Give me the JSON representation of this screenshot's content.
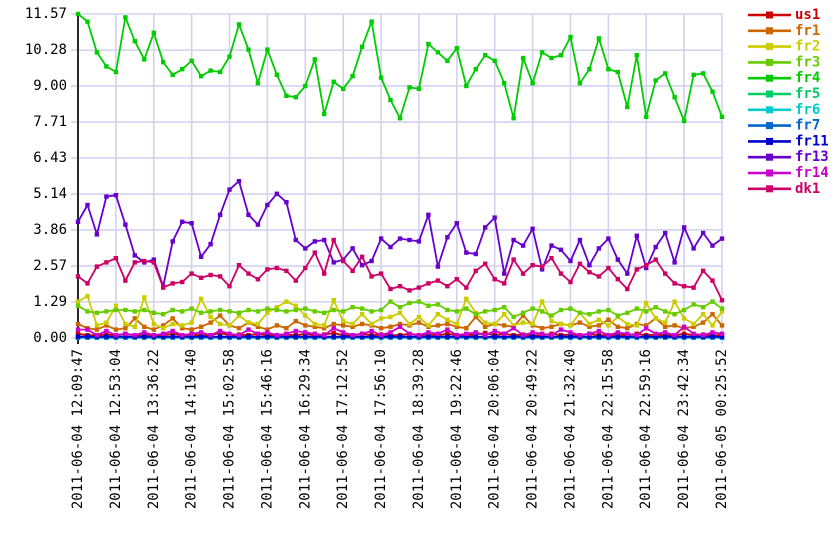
{
  "chart_data": {
    "type": "line",
    "title": "",
    "xlabel": "",
    "ylabel": "",
    "grid": true,
    "legend_position": "top-right-outside",
    "ylim": [
      0,
      11.57
    ],
    "yticks": {
      "values": [
        0.0,
        1.29,
        2.57,
        3.86,
        5.14,
        6.43,
        7.71,
        9.0,
        10.28,
        11.57
      ],
      "labels": [
        "0.00",
        "1.29",
        "2.57",
        "3.86",
        "5.14",
        "6.43",
        "7.71",
        "9.00",
        "10.28",
        "11.57"
      ]
    },
    "xticklabels": [
      "2011-06-04 12:09:47",
      "2011-06-04 12:53:04",
      "2011-06-04 13:36:22",
      "2011-06-04 14:19:40",
      "2011-06-04 15:02:58",
      "2011-06-04 15:46:16",
      "2011-06-04 16:29:34",
      "2011-06-04 17:12:52",
      "2011-06-04 17:56:10",
      "2011-06-04 18:39:28",
      "2011-06-04 19:22:46",
      "2011-06-04 20:06:04",
      "2011-06-04 20:49:22",
      "2011-06-04 21:32:40",
      "2011-06-04 22:15:58",
      "2011-06-04 22:59:16",
      "2011-06-04 23:42:34",
      "2011-06-05 00:25:52"
    ],
    "points_per_tick": 4,
    "n_points": 69,
    "colors": {
      "background": "#ffffff",
      "grid": "#d2d2f0",
      "axis": "#2a2a2a",
      "text": "#000000"
    },
    "series": [
      {
        "name": "us1",
        "color": "#cc0000",
        "values": [
          0.15,
          0.1,
          0.1,
          0.12,
          0.1,
          0.15,
          0.1,
          0.12,
          0.1,
          0.1,
          0.15,
          0.1,
          0.12,
          0.1,
          0.1,
          0.18,
          0.1,
          0.12,
          0.1,
          0.15,
          0.1,
          0.1,
          0.12,
          0.1,
          0.15,
          0.1,
          0.12,
          0.18,
          0.1,
          0.1,
          0.15,
          0.1,
          0.12,
          0.1,
          0.1,
          0.15,
          0.1,
          0.12,
          0.1,
          0.15,
          0.1,
          0.1,
          0.12,
          0.18,
          0.1,
          0.15,
          0.1,
          0.12,
          0.1,
          0.1,
          0.15,
          0.1,
          0.12,
          0.1,
          0.15,
          0.1,
          0.1,
          0.12,
          0.1,
          0.15,
          0.1,
          0.12,
          0.1,
          0.1,
          0.15,
          0.1,
          0.12,
          0.1,
          0.1
        ]
      },
      {
        "name": "fr1",
        "color": "#cc6600",
        "values": [
          0.5,
          0.35,
          0.3,
          0.45,
          0.3,
          0.35,
          0.7,
          0.4,
          0.3,
          0.45,
          0.7,
          0.35,
          0.3,
          0.4,
          0.55,
          0.8,
          0.45,
          0.35,
          0.55,
          0.4,
          0.3,
          0.45,
          0.35,
          0.6,
          0.45,
          0.4,
          0.35,
          0.5,
          0.45,
          0.4,
          0.5,
          0.45,
          0.35,
          0.4,
          0.5,
          0.45,
          0.55,
          0.4,
          0.45,
          0.5,
          0.4,
          0.35,
          0.75,
          0.4,
          0.5,
          0.45,
          0.4,
          0.8,
          0.45,
          0.35,
          0.4,
          0.5,
          0.45,
          0.55,
          0.4,
          0.45,
          0.65,
          0.4,
          0.35,
          0.5,
          0.45,
          0.7,
          0.4,
          0.45,
          0.35,
          0.4,
          0.55,
          0.85,
          0.45
        ]
      },
      {
        "name": "fr2",
        "color": "#cccc00",
        "values": [
          1.3,
          1.5,
          0.45,
          0.55,
          1.15,
          0.5,
          0.4,
          1.45,
          0.5,
          0.35,
          0.5,
          0.45,
          0.55,
          1.4,
          0.75,
          0.5,
          0.45,
          0.8,
          0.55,
          0.5,
          0.9,
          1.1,
          1.3,
          1.15,
          0.8,
          0.5,
          0.45,
          1.35,
          0.6,
          0.5,
          0.85,
          0.5,
          0.7,
          0.75,
          0.9,
          0.5,
          0.75,
          0.45,
          0.85,
          0.65,
          0.5,
          1.4,
          0.9,
          0.55,
          0.5,
          0.85,
          0.45,
          0.55,
          0.5,
          1.3,
          0.6,
          0.5,
          0.45,
          0.9,
          0.5,
          0.65,
          0.45,
          0.75,
          0.5,
          0.45,
          1.25,
          0.7,
          0.55,
          1.3,
          0.7,
          0.5,
          0.85,
          0.45,
          0.95
        ]
      },
      {
        "name": "fr3",
        "color": "#66cc00",
        "values": [
          1.15,
          0.95,
          0.9,
          0.95,
          1.0,
          1.0,
          0.95,
          1.0,
          0.9,
          0.85,
          1.0,
          0.95,
          1.05,
          0.9,
          0.95,
          1.0,
          0.95,
          0.9,
          1.0,
          0.95,
          1.05,
          1.0,
          0.95,
          1.0,
          1.05,
          0.95,
          0.9,
          1.0,
          0.95,
          1.1,
          1.05,
          0.95,
          1.0,
          1.3,
          1.1,
          1.25,
          1.3,
          1.15,
          1.2,
          1.0,
          0.95,
          1.05,
          0.85,
          0.95,
          1.0,
          1.1,
          0.75,
          0.9,
          1.05,
          0.95,
          0.8,
          1.0,
          1.05,
          0.9,
          0.85,
          0.95,
          1.0,
          0.8,
          0.9,
          1.05,
          0.95,
          1.1,
          0.95,
          0.85,
          1.0,
          1.2,
          1.1,
          1.3,
          1.05
        ]
      },
      {
        "name": "fr4",
        "color": "#00cc00",
        "values": [
          11.57,
          11.3,
          10.2,
          9.7,
          9.5,
          11.45,
          10.6,
          9.95,
          10.9,
          9.85,
          9.4,
          9.6,
          9.9,
          9.35,
          9.55,
          9.5,
          10.05,
          11.2,
          10.3,
          9.1,
          10.3,
          9.4,
          8.65,
          8.6,
          9.0,
          9.95,
          8.0,
          9.15,
          8.9,
          9.35,
          10.4,
          11.3,
          9.3,
          8.5,
          7.85,
          8.95,
          8.9,
          10.5,
          10.2,
          9.9,
          10.35,
          9.0,
          9.6,
          10.1,
          9.9,
          9.1,
          7.85,
          10.0,
          9.1,
          10.2,
          10.0,
          10.1,
          10.75,
          9.1,
          9.6,
          10.7,
          9.6,
          9.5,
          8.25,
          10.1,
          7.9,
          9.2,
          9.45,
          8.6,
          7.75,
          9.4,
          9.45,
          8.8,
          7.9
        ]
      },
      {
        "name": "fr5",
        "color": "#00cc66",
        "values": [
          0.01,
          0.01,
          0.01,
          0.01,
          0.01,
          0.01,
          0.01,
          0.01,
          0.01,
          0.01,
          0.01,
          0.01,
          0.01,
          0.01,
          0.01,
          0.01,
          0.01,
          0.01,
          0.01,
          0.01,
          0.01,
          0.01,
          0.01,
          0.01,
          0.01,
          0.01,
          0.01,
          0.01,
          0.01,
          0.01,
          0.01,
          0.01,
          0.01,
          0.01,
          0.01,
          0.01,
          0.01,
          0.01,
          0.01,
          0.01,
          0.01,
          0.01,
          0.01,
          0.01,
          0.01,
          0.01,
          0.01,
          0.01,
          0.01,
          0.01,
          0.01,
          0.01,
          0.01,
          0.01,
          0.01,
          0.01,
          0.01,
          0.01,
          0.01,
          0.01,
          0.01,
          0.01,
          0.01,
          0.01,
          0.01,
          0.01,
          0.01,
          0.01,
          0.01
        ]
      },
      {
        "name": "fr6",
        "color": "#00cccc",
        "values": [
          0.01,
          0.01,
          0.01,
          0.01,
          0.01,
          0.01,
          0.01,
          0.01,
          0.01,
          0.01,
          0.01,
          0.01,
          0.01,
          0.01,
          0.01,
          0.01,
          0.01,
          0.01,
          0.01,
          0.01,
          0.01,
          0.01,
          0.01,
          0.01,
          0.01,
          0.01,
          0.01,
          0.01,
          0.01,
          0.01,
          0.01,
          0.01,
          0.01,
          0.01,
          0.01,
          0.01,
          0.01,
          0.01,
          0.01,
          0.01,
          0.01,
          0.01,
          0.01,
          0.01,
          0.01,
          0.01,
          0.01,
          0.01,
          0.01,
          0.01,
          0.01,
          0.01,
          0.01,
          0.01,
          0.01,
          0.01,
          0.01,
          0.01,
          0.01,
          0.01,
          0.01,
          0.01,
          0.01,
          0.01,
          0.01,
          0.01,
          0.01,
          0.01,
          0.01
        ]
      },
      {
        "name": "fr7",
        "color": "#0066cc",
        "values": [
          0.02,
          0.02,
          0.02,
          0.02,
          0.02,
          0.02,
          0.02,
          0.02,
          0.02,
          0.02,
          0.02,
          0.02,
          0.02,
          0.02,
          0.02,
          0.02,
          0.02,
          0.02,
          0.02,
          0.02,
          0.02,
          0.02,
          0.02,
          0.02,
          0.02,
          0.02,
          0.02,
          0.02,
          0.02,
          0.02,
          0.02,
          0.02,
          0.02,
          0.02,
          0.02,
          0.02,
          0.02,
          0.02,
          0.02,
          0.02,
          0.02,
          0.02,
          0.02,
          0.02,
          0.02,
          0.02,
          0.02,
          0.02,
          0.02,
          0.02,
          0.02,
          0.02,
          0.02,
          0.02,
          0.02,
          0.02,
          0.02,
          0.02,
          0.02,
          0.02,
          0.02,
          0.02,
          0.02,
          0.02,
          0.02,
          0.02,
          0.02,
          0.02,
          0.02
        ]
      },
      {
        "name": "fr11",
        "color": "#0000cc",
        "values": [
          0.05,
          0.05,
          0.05,
          0.05,
          0.05,
          0.05,
          0.05,
          0.05,
          0.05,
          0.05,
          0.05,
          0.05,
          0.05,
          0.05,
          0.05,
          0.05,
          0.05,
          0.05,
          0.05,
          0.05,
          0.05,
          0.05,
          0.05,
          0.05,
          0.05,
          0.05,
          0.05,
          0.05,
          0.05,
          0.05,
          0.05,
          0.05,
          0.05,
          0.05,
          0.05,
          0.05,
          0.05,
          0.05,
          0.05,
          0.05,
          0.05,
          0.05,
          0.05,
          0.05,
          0.05,
          0.05,
          0.05,
          0.05,
          0.05,
          0.05,
          0.05,
          0.05,
          0.05,
          0.05,
          0.05,
          0.05,
          0.05,
          0.05,
          0.05,
          0.05,
          0.05,
          0.05,
          0.05,
          0.05,
          0.05,
          0.05,
          0.05,
          0.05,
          0.05
        ]
      },
      {
        "name": "fr13",
        "color": "#6600cc",
        "values": [
          4.15,
          4.75,
          3.7,
          5.05,
          5.1,
          4.05,
          2.95,
          2.7,
          2.8,
          1.85,
          3.45,
          4.15,
          4.1,
          2.9,
          3.35,
          4.4,
          5.3,
          5.6,
          4.4,
          4.05,
          4.75,
          5.15,
          4.85,
          3.5,
          3.2,
          3.45,
          3.5,
          2.7,
          2.8,
          3.2,
          2.6,
          2.75,
          3.55,
          3.25,
          3.55,
          3.5,
          3.45,
          4.4,
          2.55,
          3.6,
          4.1,
          3.05,
          3.0,
          3.95,
          4.3,
          2.3,
          3.5,
          3.3,
          3.9,
          2.45,
          3.3,
          3.15,
          2.75,
          3.5,
          2.6,
          3.2,
          3.55,
          2.8,
          2.3,
          3.65,
          2.5,
          3.25,
          3.75,
          2.7,
          3.95,
          3.2,
          3.75,
          3.3,
          3.55
        ]
      },
      {
        "name": "fr14",
        "color": "#cc00cc",
        "values": [
          0.3,
          0.3,
          0.1,
          0.25,
          0.1,
          0.15,
          0.1,
          0.2,
          0.1,
          0.15,
          0.25,
          0.1,
          0.15,
          0.2,
          0.1,
          0.25,
          0.15,
          0.1,
          0.3,
          0.15,
          0.2,
          0.1,
          0.15,
          0.25,
          0.2,
          0.15,
          0.1,
          0.35,
          0.2,
          0.1,
          0.15,
          0.25,
          0.1,
          0.2,
          0.4,
          0.15,
          0.1,
          0.2,
          0.15,
          0.3,
          0.1,
          0.15,
          0.2,
          0.1,
          0.25,
          0.15,
          0.35,
          0.1,
          0.2,
          0.15,
          0.1,
          0.3,
          0.2,
          0.1,
          0.15,
          0.25,
          0.1,
          0.2,
          0.15,
          0.1,
          0.35,
          0.15,
          0.2,
          0.1,
          0.4,
          0.15,
          0.1,
          0.2,
          0.15
        ]
      },
      {
        "name": "dk1",
        "color": "#cc0066",
        "values": [
          2.2,
          1.95,
          2.55,
          2.7,
          2.85,
          2.05,
          2.7,
          2.75,
          2.7,
          1.8,
          1.95,
          2.0,
          2.3,
          2.15,
          2.25,
          2.2,
          1.85,
          2.6,
          2.3,
          2.1,
          2.45,
          2.5,
          2.4,
          2.05,
          2.5,
          3.05,
          2.3,
          3.5,
          2.75,
          2.4,
          2.9,
          2.2,
          2.3,
          1.75,
          1.85,
          1.7,
          1.8,
          1.95,
          2.05,
          1.85,
          2.1,
          1.8,
          2.4,
          2.65,
          2.1,
          1.95,
          2.8,
          2.3,
          2.6,
          2.55,
          2.85,
          2.3,
          2.0,
          2.65,
          2.35,
          2.2,
          2.5,
          2.1,
          1.75,
          2.45,
          2.6,
          2.8,
          2.3,
          1.95,
          1.85,
          1.8,
          2.4,
          2.05,
          1.35
        ]
      }
    ]
  }
}
